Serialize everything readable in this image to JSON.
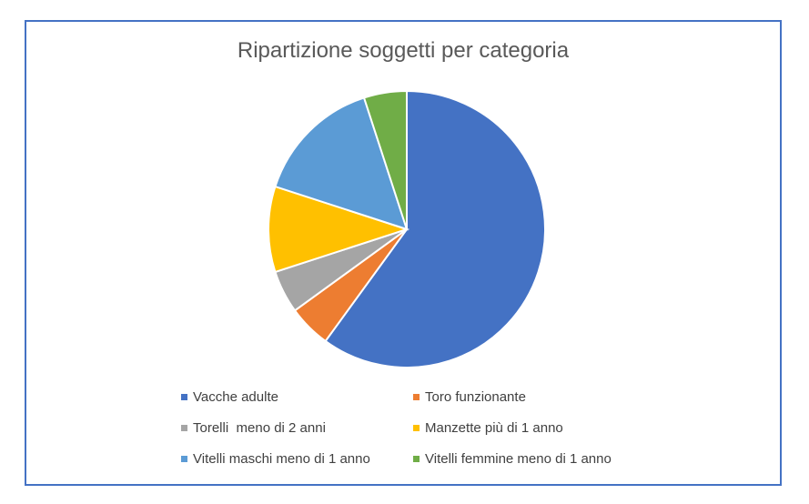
{
  "chart_data": {
    "type": "pie",
    "title": "Ripartizione soggetti per categoria",
    "categories": [
      "Vacche adulte",
      "Toro funzionante",
      "Torelli  meno di 2 anni",
      "Manzette più di 1 anno",
      "Vitelli maschi meno di 1 anno",
      "Vitelli femmine meno di 1 anno"
    ],
    "values": [
      60,
      5,
      5,
      10,
      15,
      5
    ],
    "colors": [
      "#4472c4",
      "#ed7d31",
      "#a5a5a5",
      "#ffc000",
      "#5b9bd5",
      "#70ad47"
    ],
    "legend": "bottom"
  }
}
